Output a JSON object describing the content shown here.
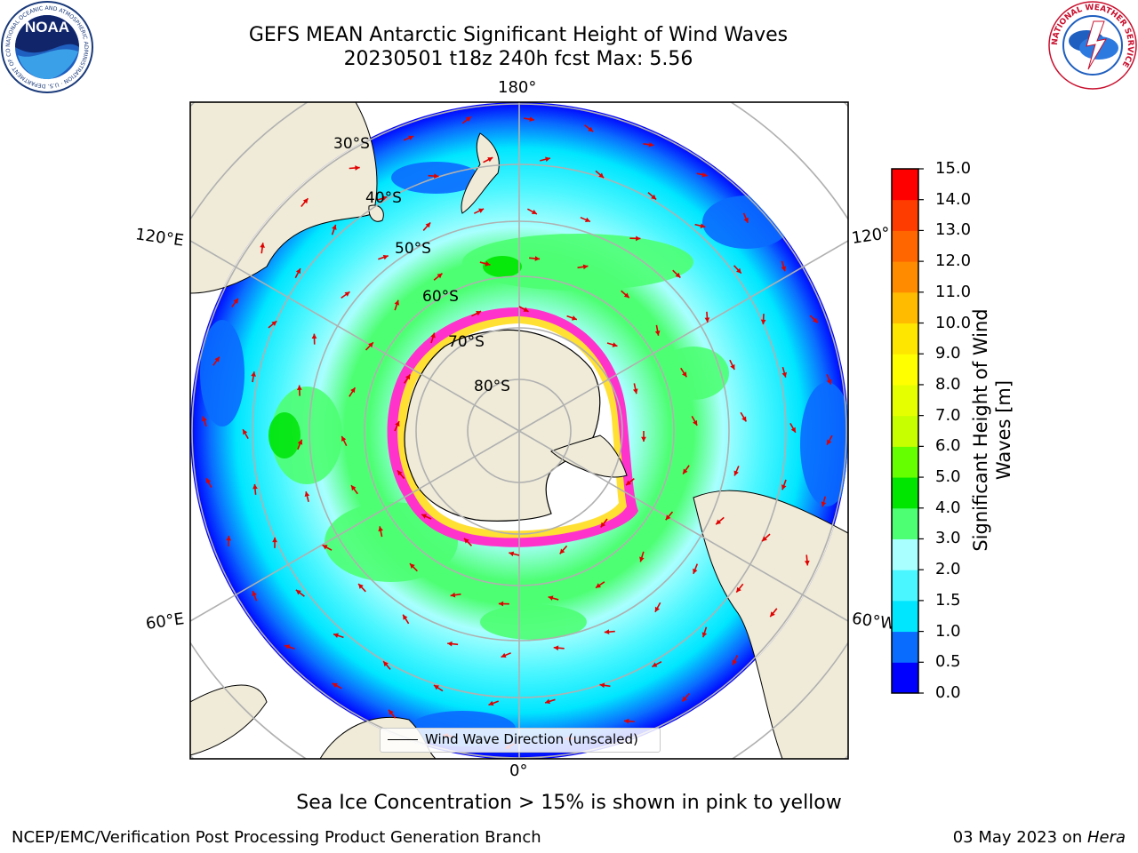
{
  "title": {
    "line1": "GEFS MEAN Antarctic Significant Height of Wind Waves",
    "line2": "20230501 t18z 240h fcst   Max: 5.56"
  },
  "logos": {
    "left": {
      "text": "NOAA",
      "ring_text": "NATIONAL OCEANIC AND ATMOSPHERIC ADMINISTRATION · U.S. DEPARTMENT OF COMMERCE"
    },
    "right": {
      "ring_text": "NATIONAL WEATHER SERVICE"
    }
  },
  "map": {
    "lon_labels": [
      "180°",
      "120°E",
      "120°",
      "60°E",
      "60°W",
      "0°"
    ],
    "lat_labels": [
      "30°S",
      "40°S",
      "50°S",
      "60°S",
      "70°S",
      "80°S"
    ],
    "legend_text": "Wind Wave Direction (unscaled)",
    "colors": {
      "land": "#efebd8",
      "ice_pink": "#ff33cc",
      "ice_yellow": "#ffe033",
      "arrow": "#e00000",
      "grid": "#b0b0b0"
    }
  },
  "colorbar": {
    "label": "Significant Height of Wind Waves [m]",
    "ticks": [
      "0.0",
      "0.5",
      "1.0",
      "1.5",
      "2.0",
      "3.0",
      "4.0",
      "5.0",
      "6.0",
      "7.0",
      "8.0",
      "9.0",
      "10.0",
      "11.0",
      "12.0",
      "13.0",
      "14.0",
      "15.0"
    ],
    "colors": [
      "#0000ff",
      "#0a6cff",
      "#00e6ff",
      "#4af6ff",
      "#a9ffff",
      "#4dff73",
      "#00e600",
      "#66ff00",
      "#c8ff00",
      "#e6ff00",
      "#ffff00",
      "#ffe600",
      "#ffbb00",
      "#ff8c00",
      "#ff6600",
      "#ff3c00",
      "#ff0000"
    ]
  },
  "caption": "Sea Ice Concentration > 15% is shown in pink to yellow",
  "footer": {
    "left": "NCEP/EMC/Verification Post Processing Product Generation Branch",
    "right_date": "03 May 2023 on ",
    "right_machine": "Hera"
  }
}
